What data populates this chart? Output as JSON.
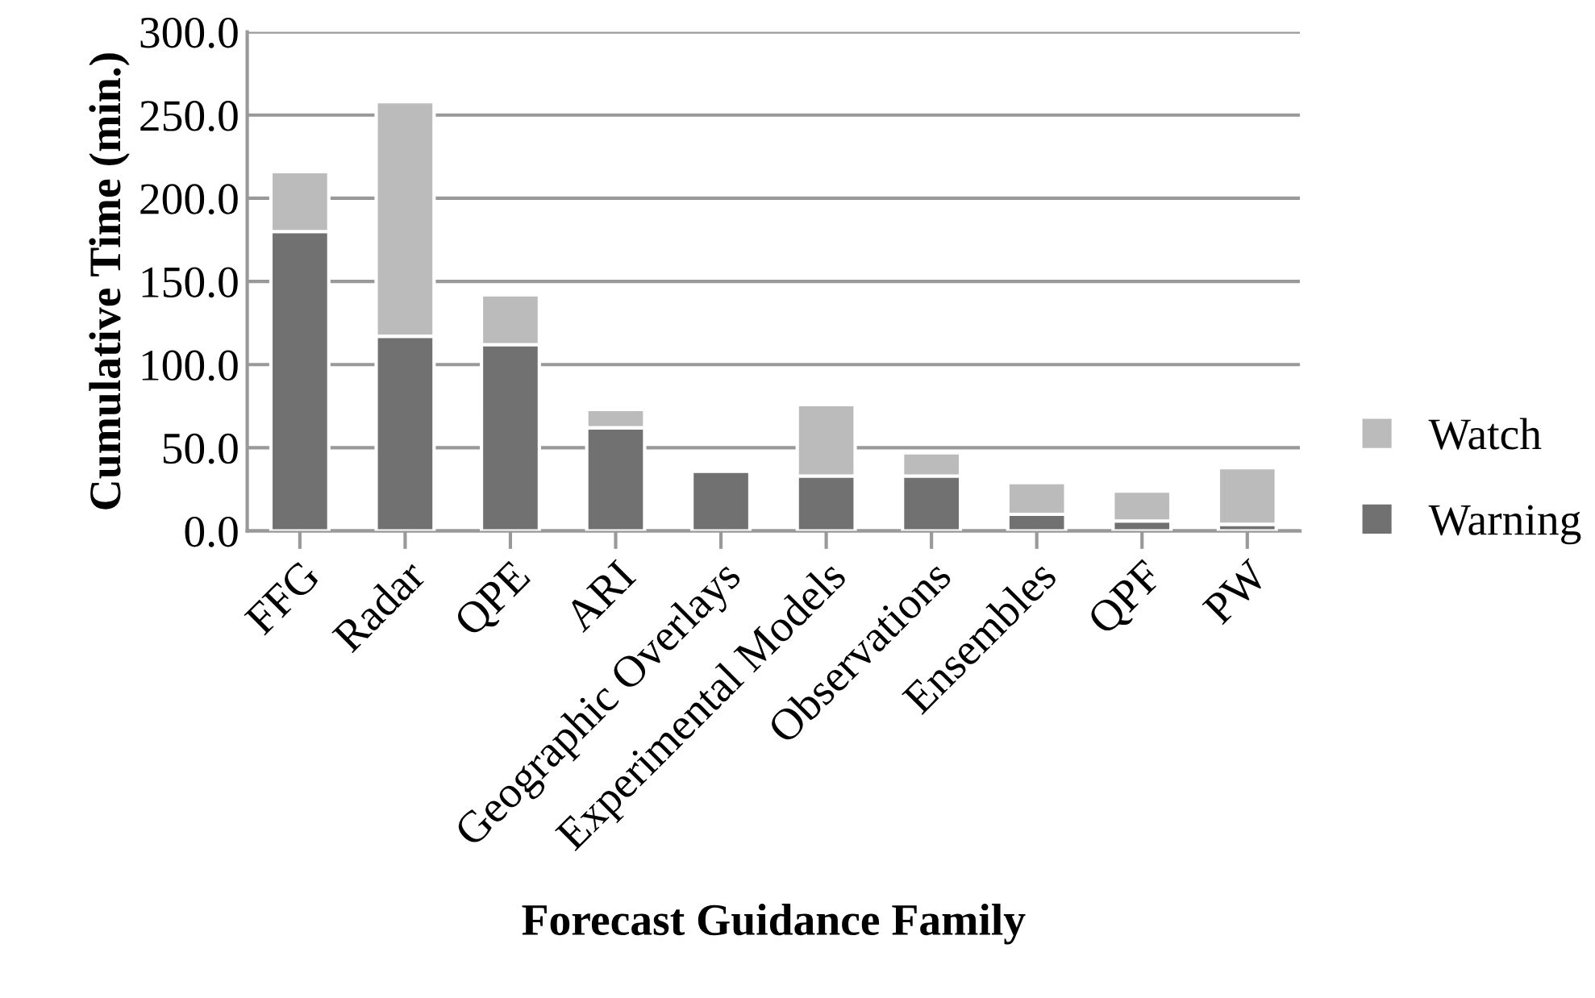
{
  "chart_data": {
    "type": "bar",
    "stacked": true,
    "xlabel": "Forecast Guidance Family",
    "ylabel": "Cumulative Time (min.)",
    "categories": [
      "FFG",
      "Radar",
      "QPE",
      "ARI",
      "Geographic Overlays",
      "Experimental Models",
      "Observations",
      "Ensembles",
      "QPF",
      "PW"
    ],
    "series": [
      {
        "name": "Warning",
        "color": "#717171",
        "values": [
          180,
          117,
          112,
          62,
          36,
          33,
          33,
          10,
          6,
          4
        ]
      },
      {
        "name": "Watch",
        "color": "#bbbbbb",
        "values": [
          36,
          141,
          30,
          11,
          2,
          43,
          14,
          19,
          18,
          34
        ]
      }
    ],
    "ylim": [
      0,
      300
    ],
    "yticks": [
      {
        "value": 0,
        "label": "0.0"
      },
      {
        "value": 50,
        "label": "50.0"
      },
      {
        "value": 100,
        "label": "100.0"
      },
      {
        "value": 150,
        "label": "150.0"
      },
      {
        "value": 200,
        "label": "200.0"
      },
      {
        "value": 250,
        "label": "250.0"
      },
      {
        "value": 300,
        "label": "300.0"
      }
    ],
    "grid": "y",
    "legend": "right"
  }
}
